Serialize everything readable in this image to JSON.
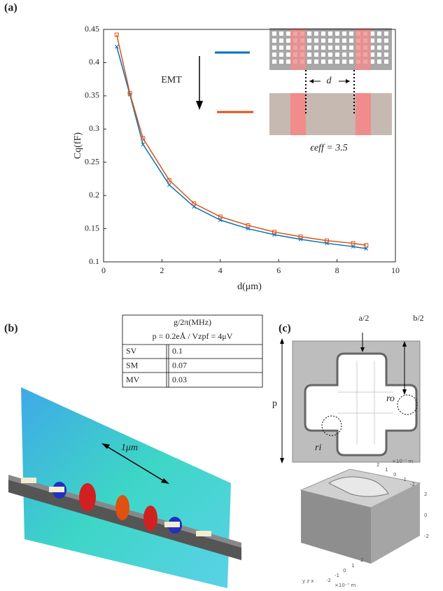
{
  "chart_data": {
    "type": "line",
    "panel": "(a)",
    "xlabel": "d(μm)",
    "ylabel": "Cq(fF)",
    "x": [
      0.45,
      0.9,
      1.35,
      2.25,
      3.1,
      4.0,
      4.95,
      5.85,
      6.75,
      7.65,
      8.55,
      9.0
    ],
    "series": [
      {
        "color": "#0072bd",
        "marker": "x",
        "values": [
          0.424,
          0.352,
          0.277,
          0.216,
          0.183,
          0.163,
          0.15,
          0.141,
          0.134,
          0.128,
          0.123,
          0.12
        ]
      },
      {
        "color": "#d95319",
        "marker": "square",
        "values": [
          0.442,
          0.354,
          0.286,
          0.223,
          0.188,
          0.168,
          0.155,
          0.145,
          0.138,
          0.132,
          0.128,
          0.125
        ]
      }
    ],
    "xlim": [
      0,
      10
    ],
    "xticks": [
      0,
      2,
      4,
      6,
      8,
      10
    ],
    "ylim": [
      0.1,
      0.45
    ],
    "yticks": [
      0.1,
      0.15,
      0.2,
      0.25,
      0.3,
      0.35,
      0.4,
      0.45
    ],
    "annotations": {
      "emt": "EMT",
      "d": "d",
      "eps": "ϵeff = 3.5"
    }
  },
  "panel_b": {
    "label": "(b)",
    "table": {
      "header": [
        "g/2π(MHz)",
        "p = 0.2eÅ / Vzpf = 4μV"
      ],
      "rows": [
        [
          "SV",
          "0.1"
        ],
        [
          "SM",
          "0.07"
        ],
        [
          "MV",
          "0.03"
        ]
      ]
    },
    "scale": "1μm"
  },
  "panel_c": {
    "label": "(c)",
    "a": "a/2",
    "b": "b/2",
    "p": "p",
    "ro": "ro",
    "ri": "ri",
    "render_ticks": [
      "2",
      "1",
      "0",
      "-1",
      "-2",
      "×10⁻⁷ m",
      "2",
      "1",
      "0",
      "-1",
      "-2",
      "×10⁻⁷ m",
      "2",
      "0",
      "-2"
    ]
  }
}
